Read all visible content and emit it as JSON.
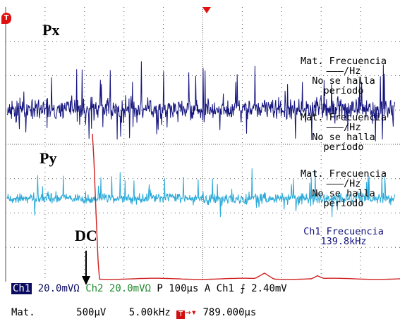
{
  "labels": {
    "px": "Px",
    "py": "Py",
    "dc": "DC"
  },
  "trigger_marker": "T",
  "measurements": [
    {
      "lines": [
        "Mat. Frecuencia",
        "———/Hz",
        "No se halla",
        "período"
      ]
    },
    {
      "lines": [
        "Mat. Frecuencia",
        "———/Hz",
        "No se halla",
        "período"
      ]
    },
    {
      "lines": [
        "Mat. Frecuencia",
        "———/Hz",
        "No se halla",
        "período"
      ]
    },
    {
      "lines": [
        "Ch1 Frecuencia",
        "139.8kHz"
      ]
    }
  ],
  "status_bar": {
    "ch1": "Ch1",
    "ch1_scale": "20.0mVΩ",
    "ch2": "Ch2",
    "ch2_scale": "20.0mVΩ",
    "time_base": "P 100µs",
    "trigger": "A  Ch1",
    "trigger_slope": "⨍",
    "trigger_level": "2.40mV"
  },
  "math_bar": {
    "label": "Mat.",
    "scale": "500µV",
    "freq": "5.00kHz",
    "trig_icon": "T",
    "trig_arrow": "→▾",
    "delay": "789.000µs"
  },
  "colors": {
    "px_trace": "#15157e",
    "py_trace": "#2aa9d8",
    "dc_trace": "#d02020",
    "grid": "#555555"
  }
}
